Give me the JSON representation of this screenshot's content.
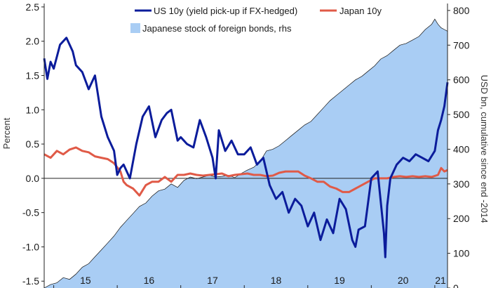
{
  "chart_data": {
    "type": "line",
    "title": "",
    "xlabel": "",
    "ylabel": "Percent",
    "ylabel_right": "USD bn, cumulative since end -2014",
    "ylim": [
      -1.6,
      2.55
    ],
    "ylim_right": [
      0,
      820
    ],
    "xlim": [
      2014.85,
      2021.2
    ],
    "yticks": [
      "2.5",
      "2.0",
      "1.5",
      "1.0",
      "0.5",
      "0.0",
      "-0.5",
      "-1.0",
      "-1.5"
    ],
    "yticks_right": [
      "800",
      "700",
      "600",
      "500",
      "400",
      "300",
      "200",
      "100",
      "0"
    ],
    "xticks": [
      "15",
      "16",
      "17",
      "18",
      "19",
      "20",
      "21"
    ],
    "colors": {
      "us": "#0b1c9b",
      "japan": "#e05a47",
      "stock_fill": "#a9cdf4",
      "stock_edge": "#111111"
    },
    "legend": {
      "us": "US 10y (yield pick-up if FX-hedged)",
      "japan": "Japan 10y",
      "stock": "Japanese stock of foreign bonds, rhs"
    },
    "series": [
      {
        "name": "US 10y (yield pick-up if FX-hedged)",
        "axis": "left",
        "x": [
          2014.85,
          2014.9,
          2014.95,
          2015.0,
          2015.1,
          2015.2,
          2015.3,
          2015.35,
          2015.45,
          2015.55,
          2015.65,
          2015.75,
          2015.85,
          2015.95,
          2016.0,
          2016.05,
          2016.1,
          2016.2,
          2016.3,
          2016.4,
          2016.5,
          2016.6,
          2016.7,
          2016.78,
          2016.85,
          2016.95,
          2017.0,
          2017.1,
          2017.2,
          2017.3,
          2017.4,
          2017.5,
          2017.55,
          2017.6,
          2017.7,
          2017.8,
          2017.9,
          2018.0,
          2018.1,
          2018.2,
          2018.3,
          2018.4,
          2018.5,
          2018.6,
          2018.7,
          2018.8,
          2018.9,
          2019.0,
          2019.1,
          2019.2,
          2019.3,
          2019.4,
          2019.5,
          2019.6,
          2019.7,
          2019.75,
          2019.8,
          2019.9,
          2020.0,
          2020.1,
          2020.2,
          2020.22,
          2020.25,
          2020.3,
          2020.4,
          2020.5,
          2020.6,
          2020.7,
          2020.8,
          2020.9,
          2021.0,
          2021.05,
          2021.1,
          2021.15,
          2021.2
        ],
        "values": [
          1.75,
          1.45,
          1.7,
          1.6,
          1.95,
          2.05,
          1.85,
          1.65,
          1.55,
          1.3,
          1.5,
          0.9,
          0.6,
          0.4,
          0.05,
          0.15,
          0.2,
          0.0,
          0.5,
          0.9,
          1.05,
          0.6,
          0.85,
          0.95,
          1.0,
          0.55,
          0.6,
          0.5,
          0.45,
          0.85,
          0.6,
          0.3,
          0.0,
          0.7,
          0.4,
          0.55,
          0.35,
          0.35,
          0.45,
          0.2,
          0.3,
          -0.1,
          -0.3,
          -0.2,
          -0.5,
          -0.3,
          -0.4,
          -0.7,
          -0.5,
          -0.9,
          -0.6,
          -0.8,
          -0.3,
          -0.45,
          -0.9,
          -1.0,
          -0.75,
          -0.7,
          0.0,
          0.1,
          -0.8,
          -1.15,
          -0.4,
          0.0,
          0.2,
          0.3,
          0.25,
          0.35,
          0.3,
          0.25,
          0.4,
          0.7,
          0.85,
          1.05,
          1.4
        ]
      },
      {
        "name": "Japan 10y",
        "axis": "left",
        "x": [
          2014.85,
          2014.95,
          2015.05,
          2015.15,
          2015.25,
          2015.35,
          2015.45,
          2015.55,
          2015.65,
          2015.75,
          2015.85,
          2015.95,
          2016.05,
          2016.1,
          2016.15,
          2016.25,
          2016.35,
          2016.45,
          2016.55,
          2016.65,
          2016.75,
          2016.85,
          2016.95,
          2017.05,
          2017.15,
          2017.25,
          2017.35,
          2017.45,
          2017.55,
          2017.65,
          2017.75,
          2017.85,
          2017.95,
          2018.05,
          2018.15,
          2018.25,
          2018.35,
          2018.45,
          2018.55,
          2018.65,
          2018.75,
          2018.85,
          2018.95,
          2019.05,
          2019.15,
          2019.25,
          2019.35,
          2019.45,
          2019.55,
          2019.65,
          2019.75,
          2019.85,
          2019.95,
          2020.05,
          2020.15,
          2020.25,
          2020.35,
          2020.45,
          2020.55,
          2020.65,
          2020.75,
          2020.85,
          2020.95,
          2021.05,
          2021.1,
          2021.15,
          2021.2
        ],
        "values": [
          0.35,
          0.3,
          0.4,
          0.35,
          0.42,
          0.45,
          0.4,
          0.38,
          0.32,
          0.3,
          0.28,
          0.22,
          0.1,
          -0.05,
          -0.1,
          -0.15,
          -0.25,
          -0.1,
          -0.05,
          -0.05,
          0.02,
          -0.05,
          0.05,
          0.05,
          0.07,
          0.05,
          0.04,
          0.05,
          0.06,
          0.07,
          0.03,
          0.05,
          0.06,
          0.07,
          0.05,
          0.05,
          0.03,
          0.04,
          0.08,
          0.1,
          0.1,
          0.1,
          0.04,
          0.0,
          -0.05,
          -0.05,
          -0.12,
          -0.15,
          -0.2,
          -0.2,
          -0.15,
          -0.1,
          -0.05,
          0.0,
          0.0,
          0.0,
          0.02,
          0.03,
          0.02,
          0.03,
          0.02,
          0.03,
          0.02,
          0.05,
          0.15,
          0.1,
          0.12
        ]
      },
      {
        "name": "Japanese stock of foreign bonds, rhs",
        "axis": "right",
        "kind": "area",
        "x": [
          2014.85,
          2014.95,
          2015.05,
          2015.15,
          2015.25,
          2015.35,
          2015.45,
          2015.55,
          2015.65,
          2015.75,
          2015.85,
          2015.95,
          2016.05,
          2016.15,
          2016.25,
          2016.35,
          2016.45,
          2016.55,
          2016.65,
          2016.75,
          2016.85,
          2016.95,
          2017.05,
          2017.15,
          2017.25,
          2017.35,
          2017.45,
          2017.55,
          2017.65,
          2017.75,
          2017.85,
          2017.95,
          2018.05,
          2018.15,
          2018.25,
          2018.35,
          2018.45,
          2018.55,
          2018.65,
          2018.75,
          2018.85,
          2018.95,
          2019.05,
          2019.15,
          2019.25,
          2019.35,
          2019.45,
          2019.55,
          2019.65,
          2019.75,
          2019.85,
          2019.95,
          2020.05,
          2020.15,
          2020.25,
          2020.35,
          2020.45,
          2020.55,
          2020.65,
          2020.75,
          2020.85,
          2020.95,
          2021.0,
          2021.05,
          2021.1,
          2021.15,
          2021.2
        ],
        "values": [
          0,
          10,
          15,
          30,
          25,
          40,
          60,
          70,
          90,
          110,
          130,
          150,
          175,
          195,
          215,
          235,
          245,
          265,
          280,
          285,
          300,
          290,
          310,
          320,
          315,
          320,
          325,
          320,
          322,
          325,
          318,
          330,
          340,
          348,
          365,
          395,
          400,
          410,
          425,
          440,
          455,
          470,
          480,
          500,
          520,
          540,
          555,
          570,
          585,
          600,
          610,
          625,
          640,
          660,
          670,
          685,
          700,
          705,
          715,
          725,
          745,
          760,
          775,
          760,
          750,
          745,
          740
        ]
      }
    ]
  }
}
